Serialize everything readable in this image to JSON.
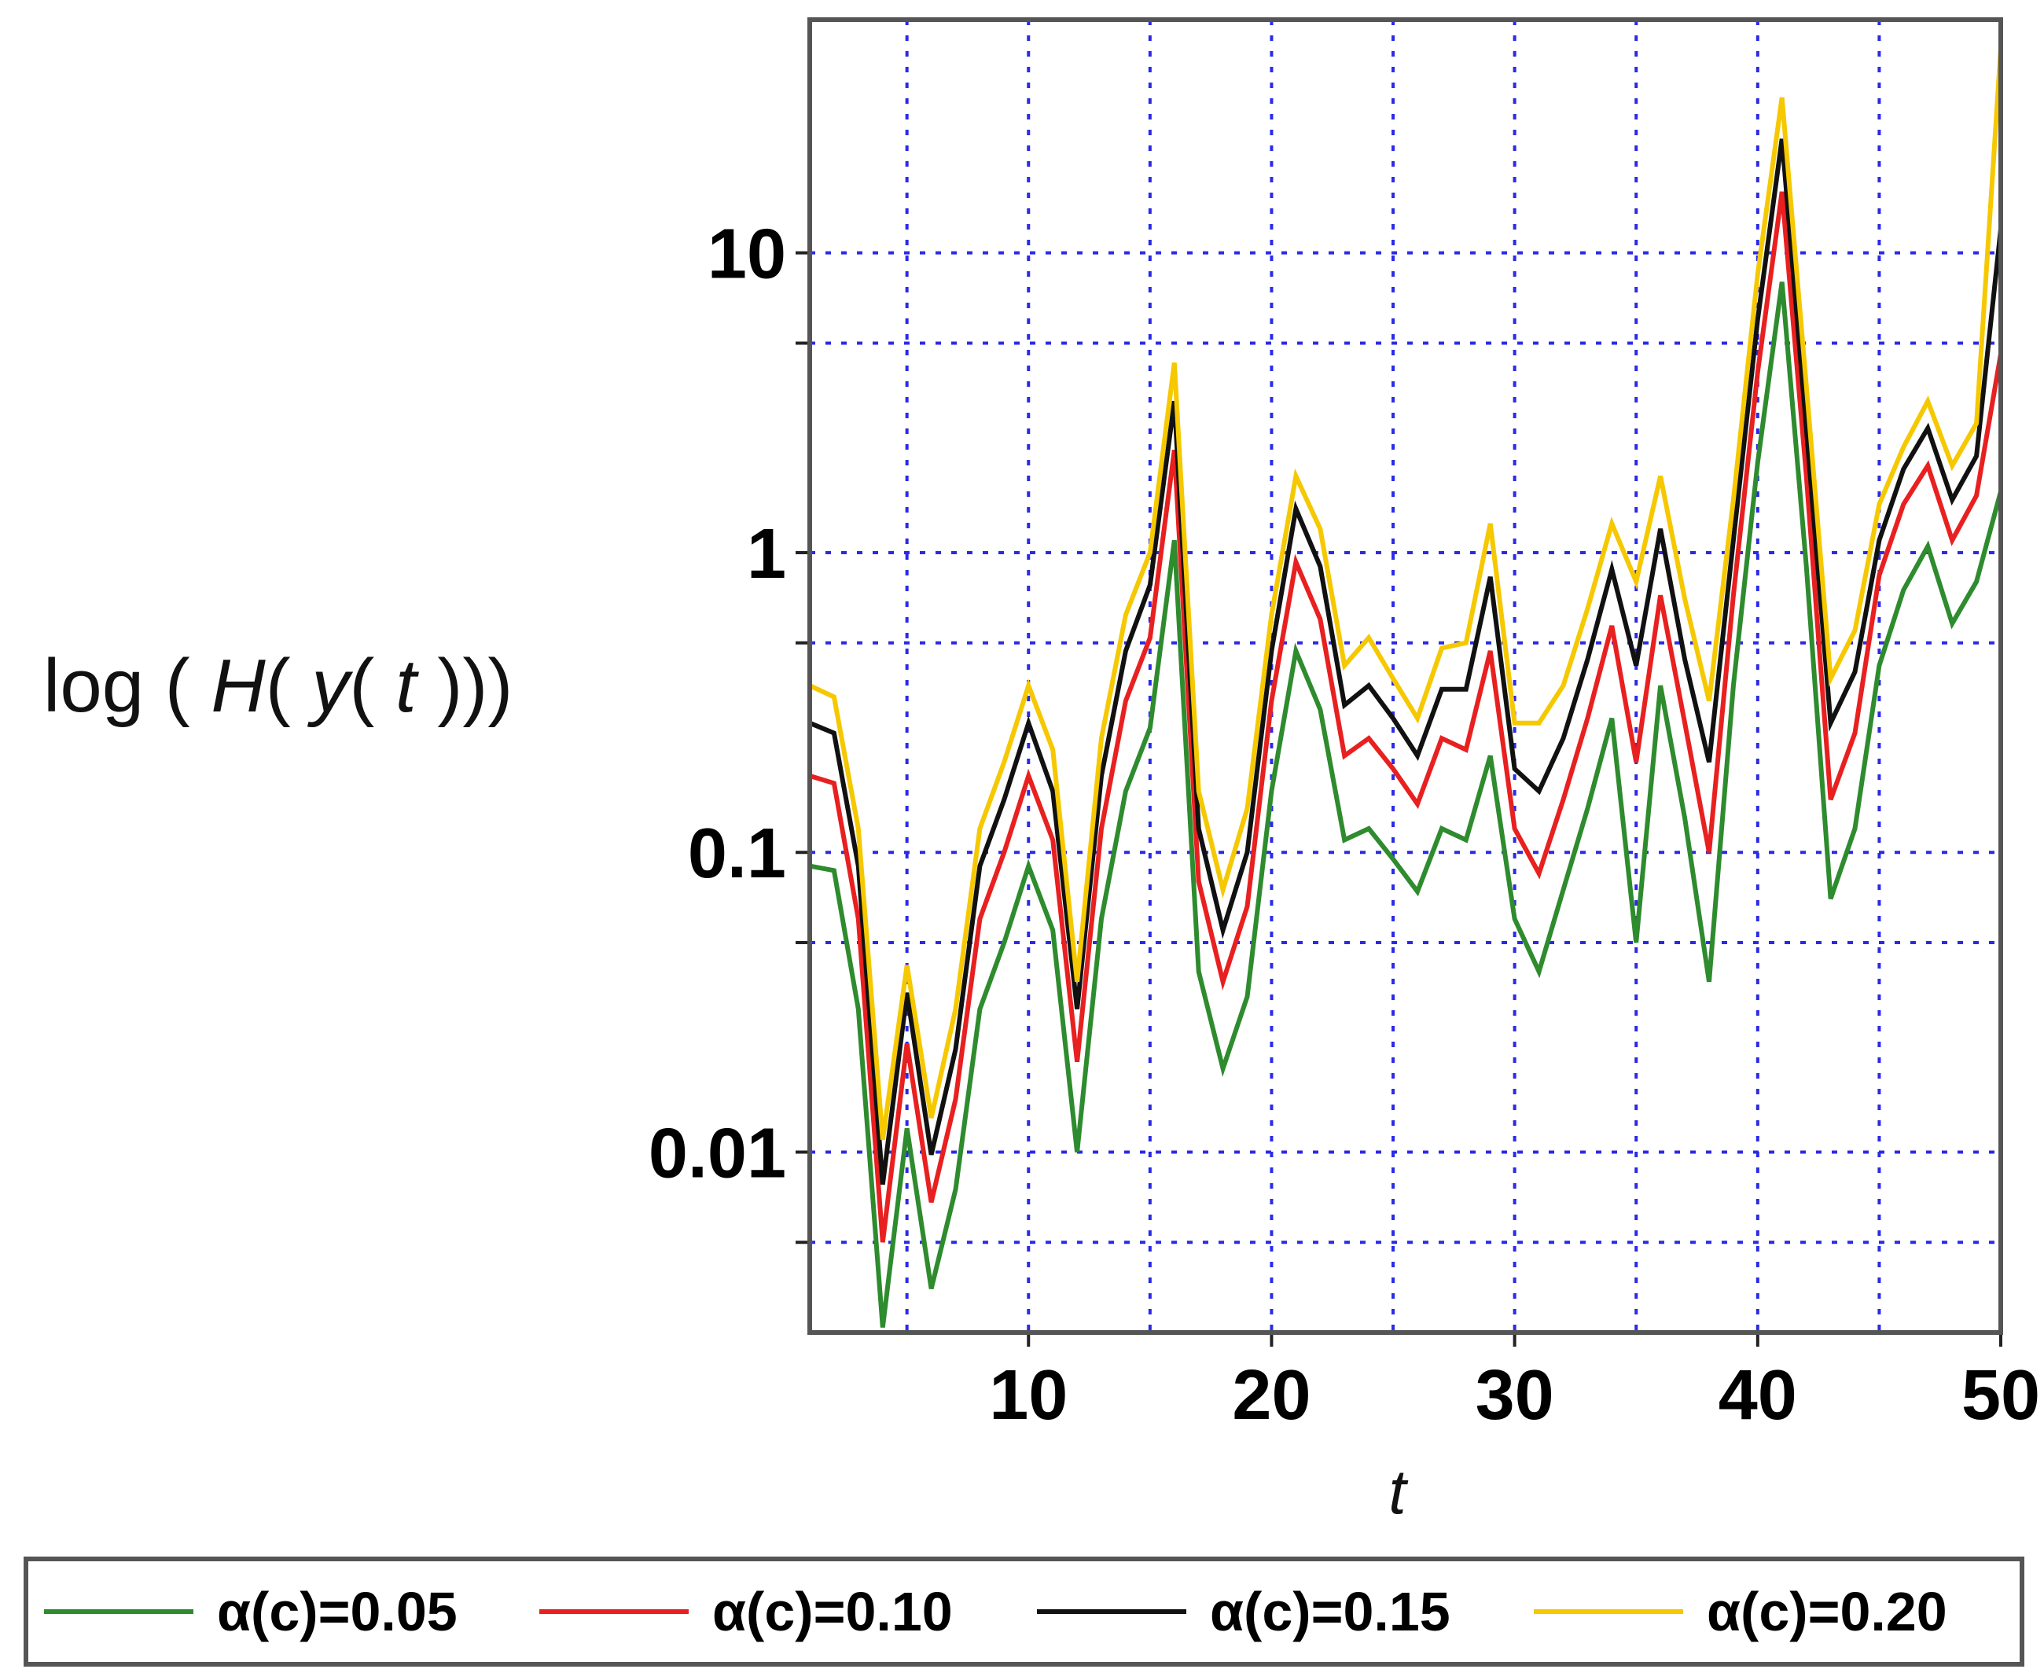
{
  "chart_data": {
    "type": "line",
    "ylabel_parts": {
      "fn": "log",
      "open1": "(",
      "h": "H",
      "open2": "(",
      "y": "y",
      "open3": "(",
      "t": "t",
      "close": ")))"
    },
    "xlabel": "t",
    "yscale": "log",
    "xlim": [
      1,
      50
    ],
    "ylim": [
      0.0025,
      60
    ],
    "grid": true,
    "legend_position": "bottom",
    "x_ticks": [
      {
        "value": 10,
        "label": "10"
      },
      {
        "value": 20,
        "label": "20"
      },
      {
        "value": 30,
        "label": "30"
      },
      {
        "value": 40,
        "label": "40"
      },
      {
        "value": 50,
        "label": "50"
      }
    ],
    "y_ticks": [
      {
        "value": 0.01,
        "label": "0.01"
      },
      {
        "value": 0.1,
        "label": "0.1"
      },
      {
        "value": 1,
        "label": "1"
      },
      {
        "value": 10,
        "label": "10"
      }
    ],
    "grid_x": [
      5,
      10,
      15,
      20,
      25,
      30,
      35,
      40,
      45,
      50
    ],
    "grid_y": [
      0.005,
      0.01,
      0.05,
      0.1,
      0.5,
      1,
      5,
      10
    ],
    "x": [
      1,
      2,
      3,
      4,
      5,
      6,
      7,
      8,
      9,
      10,
      11,
      12,
      13,
      14,
      15,
      16,
      17,
      18,
      19,
      20,
      21,
      22,
      23,
      24,
      25,
      26,
      27,
      28,
      29,
      30,
      31,
      32,
      33,
      34,
      35,
      36,
      37,
      38,
      39,
      40,
      41,
      42,
      43,
      44,
      45,
      46,
      47,
      48,
      49,
      50
    ],
    "series": [
      {
        "name": "α(c)=0.05",
        "color": "#2e8b2e",
        "values": [
          0.09,
          0.087,
          0.03,
          0.0026,
          0.012,
          0.0035,
          0.0075,
          0.03,
          0.05,
          0.09,
          0.055,
          0.01,
          0.06,
          0.16,
          0.26,
          1.1,
          0.04,
          0.019,
          0.033,
          0.16,
          0.47,
          0.3,
          0.11,
          0.12,
          0.095,
          0.074,
          0.12,
          0.11,
          0.21,
          0.06,
          0.04,
          0.075,
          0.14,
          0.28,
          0.05,
          0.36,
          0.13,
          0.037,
          0.36,
          2.0,
          8.0,
          0.9,
          0.07,
          0.12,
          0.42,
          0.75,
          1.05,
          0.58,
          0.8,
          1.6
        ]
      },
      {
        "name": "α(c)=0.10",
        "color": "#e82020",
        "values": [
          0.18,
          0.17,
          0.06,
          0.005,
          0.023,
          0.0068,
          0.015,
          0.06,
          0.1,
          0.18,
          0.11,
          0.02,
          0.12,
          0.32,
          0.52,
          2.2,
          0.08,
          0.037,
          0.066,
          0.32,
          0.93,
          0.6,
          0.21,
          0.24,
          0.19,
          0.145,
          0.24,
          0.22,
          0.47,
          0.12,
          0.085,
          0.15,
          0.28,
          0.57,
          0.2,
          0.72,
          0.27,
          0.1,
          0.72,
          4.0,
          16.0,
          1.8,
          0.15,
          0.25,
          0.84,
          1.45,
          1.95,
          1.1,
          1.55,
          4.6
        ]
      },
      {
        "name": "α(c)=0.15",
        "color": "#111111",
        "values": [
          0.27,
          0.25,
          0.09,
          0.0078,
          0.034,
          0.0098,
          0.022,
          0.09,
          0.15,
          0.27,
          0.16,
          0.03,
          0.18,
          0.47,
          0.78,
          3.2,
          0.12,
          0.055,
          0.1,
          0.47,
          1.4,
          0.9,
          0.31,
          0.36,
          0.28,
          0.21,
          0.35,
          0.35,
          0.83,
          0.19,
          0.16,
          0.24,
          0.44,
          0.88,
          0.42,
          1.2,
          0.44,
          0.2,
          1.1,
          6.0,
          24.0,
          2.6,
          0.27,
          0.4,
          1.1,
          1.9,
          2.6,
          1.5,
          2.1,
          12.0
        ]
      },
      {
        "name": "α(c)=0.20",
        "color": "#f5c800",
        "values": [
          0.36,
          0.33,
          0.12,
          0.011,
          0.042,
          0.013,
          0.03,
          0.12,
          0.2,
          0.36,
          0.22,
          0.037,
          0.24,
          0.62,
          1.0,
          4.3,
          0.16,
          0.075,
          0.14,
          0.62,
          1.8,
          1.2,
          0.42,
          0.52,
          0.38,
          0.28,
          0.48,
          0.5,
          1.25,
          0.27,
          0.27,
          0.36,
          0.65,
          1.25,
          0.8,
          1.8,
          0.7,
          0.32,
          1.5,
          8.5,
          33.0,
          3.6,
          0.38,
          0.55,
          1.45,
          2.25,
          3.2,
          1.95,
          2.7,
          48.0
        ]
      }
    ]
  }
}
